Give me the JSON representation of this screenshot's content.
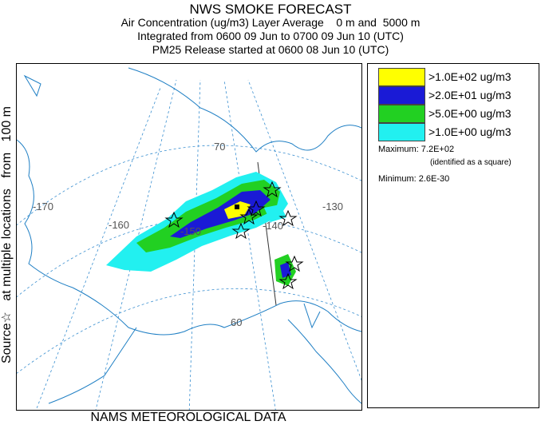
{
  "title": {
    "line1": "NWS SMOKE FORECAST",
    "line2": "Air Concentration (ug/m3) Layer Average    0 m and  5000 m",
    "line3": "Integrated from 0600 09 Jun to 0700 09 Jun 10 (UTC)",
    "line4": "PM25 Release started at 0600 08 Jun 10 (UTC)"
  },
  "side_label": "Source☆   at multiple locations   from   100 m",
  "footer": "NAMS METEOROLOGICAL DATA",
  "map": {
    "longitude_labels": [
      "-170",
      "-160",
      "-150",
      "-140",
      "-130"
    ],
    "latitude_labels": [
      "70",
      "60"
    ],
    "colors": {
      "coast": "#1f7fc4",
      "grid": "#3a8fd0"
    }
  },
  "legend": {
    "items": [
      {
        "label": ">1.0E+02 ug/m3",
        "color": "#ffff00"
      },
      {
        "label": ">2.0E+01 ug/m3",
        "color": "#1a1ad6"
      },
      {
        "label": ">5.0E+00 ug/m3",
        "color": "#22d022"
      },
      {
        "label": ">1.0E+00 ug/m3",
        "color": "#22f0f0"
      }
    ],
    "maximum": "Maximum: 7.2E+02",
    "maximum_note": "(identified as a square)",
    "minimum": "Minimum: 2.6E-30"
  }
}
